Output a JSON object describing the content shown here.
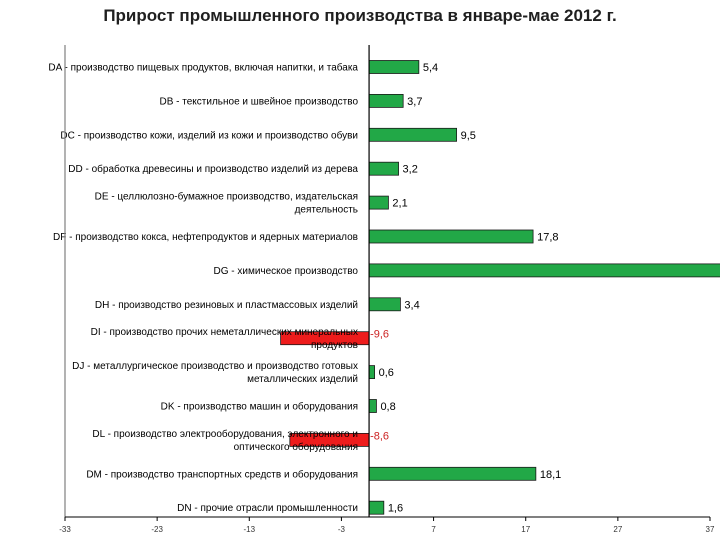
{
  "chart_data": {
    "type": "bar",
    "orientation": "horizontal",
    "title": "Прирост промышленного производства в январе-мае 2012 г.",
    "xlabel": "",
    "ylabel": "",
    "xlim": [
      -33,
      37
    ],
    "xticks": [
      -33,
      -23,
      -13,
      -3,
      7,
      17,
      27,
      37
    ],
    "grid": false,
    "categories": [
      "DA - производство пищевых продуктов, включая напитки, и табака",
      "DB - текстильное и швейное производство",
      "DC - производство кожи, изделий из кожи и производство обуви",
      "DD - обработка древесины и производство изделий из дерева",
      "DE - целлюлозно-бумажное производство, издательская деятельность",
      "DF - производство кокса, нефтепродуктов и ядерных материалов",
      "DG - химическое производство",
      "DH - производство резиновых и пластмассовых изделий",
      "DI - производство прочих неметаллических минеральных продуктов",
      "DJ - металлургическое производство и производство готовых металлических изделий",
      "DK - производство машин и оборудования",
      "DL - производство электрооборудования, электронного и оптического оборудования",
      "DM - производство транспортных средств и оборудования",
      "DN - прочие отрасли промышленности"
    ],
    "label_lines": [
      [
        "DA - производство пищевых продуктов, включая напитки, и табака"
      ],
      [
        "DB - текстильное и швейное производство"
      ],
      [
        "DC - производство кожи, изделий из кожи и производство обуви"
      ],
      [
        "DD - обработка древесины и производство изделий из дерева"
      ],
      [
        "DE - целлюлозно-бумажное производство, издательская",
        "деятельность"
      ],
      [
        "DF - производство кокса, нефтепродуктов и ядерных материалов"
      ],
      [
        "DG - химическое производство"
      ],
      [
        "DH - производство резиновых и пластмассовых изделий"
      ],
      [
        "DI - производство прочих неметаллических минеральных",
        "продуктов"
      ],
      [
        "DJ - металлургическое производство и производство готовых",
        "металлических изделий"
      ],
      [
        "DK - производство машин и оборудования"
      ],
      [
        "DL - производство электрооборудования, электронного и",
        "оптического оборудования"
      ],
      [
        "DM - производство транспортных средств и оборудования"
      ],
      [
        "DN - прочие отрасли промышленности"
      ]
    ],
    "values": [
      5.4,
      3.7,
      9.5,
      3.2,
      2.1,
      17.8,
      40,
      3.4,
      -9.6,
      0.6,
      0.8,
      -8.6,
      18.1,
      1.6
    ],
    "value_labels": [
      "5,4",
      "3,7",
      "9,5",
      "3,2",
      "2,1",
      "17,8",
      "",
      "3,4",
      "-9,6",
      "0,6",
      "0,8",
      "-8,6",
      "18,1",
      "1,6"
    ],
    "colors": {
      "positive": "#22a847",
      "negative": "#ee1c1c",
      "negative_label": "#cc2222",
      "positive_label": "#000000"
    }
  }
}
